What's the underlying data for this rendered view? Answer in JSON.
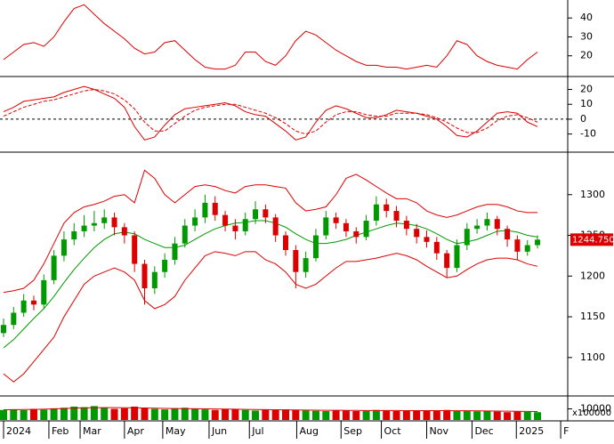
{
  "chart_data": [
    {
      "type": "line",
      "ylim": [
        10,
        49.5
      ],
      "yticks": [
        20,
        30,
        40
      ],
      "series": [
        {
          "color": "#dd0000",
          "values": [
            18,
            22,
            26,
            27,
            25,
            30,
            38,
            45,
            47,
            42,
            37,
            33,
            29,
            24,
            21,
            22,
            27,
            28,
            23,
            18,
            14,
            13,
            13,
            15,
            22,
            22,
            17,
            15,
            20,
            28,
            33,
            31,
            27,
            23,
            20,
            17,
            15,
            15,
            14,
            14,
            13,
            14,
            15,
            14,
            20,
            28,
            26,
            20,
            17,
            15,
            14,
            13,
            18,
            22
          ]
        }
      ]
    },
    {
      "type": "line",
      "ylim": [
        -21,
        27.5
      ],
      "yticks": [
        20,
        10,
        0,
        -10
      ],
      "zero_line": 0,
      "series": [
        {
          "color": "#dd0000",
          "dashed": false,
          "values": [
            5,
            8,
            12,
            13,
            14,
            15,
            18,
            20,
            22,
            20,
            17,
            14,
            8,
            -5,
            -14,
            -12,
            -4,
            3,
            7,
            8,
            9,
            10,
            11,
            9,
            5,
            3,
            2,
            -3,
            -8,
            -14,
            -12,
            -2,
            6,
            9,
            7,
            4,
            1,
            1,
            3,
            6,
            5,
            4,
            2,
            0,
            -5,
            -11,
            -12,
            -8,
            -2,
            4,
            5,
            4,
            -2,
            -5
          ]
        },
        {
          "color": "#dd0000",
          "dashed": true,
          "values": [
            2,
            5,
            8,
            10,
            12,
            13,
            15,
            17,
            19,
            20,
            19,
            17,
            13,
            7,
            -2,
            -8,
            -8,
            -3,
            2,
            6,
            8,
            9,
            10,
            10,
            8,
            6,
            4,
            1,
            -3,
            -8,
            -10,
            -8,
            -2,
            3,
            5,
            5,
            3,
            2,
            2,
            4,
            4,
            4,
            3,
            1,
            -2,
            -6,
            -9,
            -9,
            -6,
            -1,
            2,
            3,
            1,
            -2
          ]
        }
      ]
    },
    {
      "type": "candlestick",
      "ylim": [
        1055,
        1350
      ],
      "yticks": [
        1100,
        1150,
        1200,
        1250,
        1300
      ],
      "up_color": "#009900",
      "down_color": "#dd0000",
      "open": [
        1130,
        1140,
        1155,
        1170,
        1165,
        1195,
        1225,
        1245,
        1255,
        1262,
        1265,
        1272,
        1260,
        1250,
        1215,
        1185,
        1205,
        1220,
        1240,
        1262,
        1272,
        1290,
        1275,
        1262,
        1255,
        1270,
        1282,
        1272,
        1250,
        1232,
        1205,
        1222,
        1250,
        1272,
        1265,
        1255,
        1248,
        1268,
        1288,
        1280,
        1268,
        1258,
        1248,
        1242,
        1228,
        1210,
        1238,
        1258,
        1262,
        1270,
        1258,
        1245,
        1230,
        1238
      ],
      "high": [
        1148,
        1162,
        1178,
        1176,
        1202,
        1232,
        1255,
        1265,
        1275,
        1280,
        1282,
        1278,
        1265,
        1255,
        1220,
        1212,
        1228,
        1248,
        1270,
        1282,
        1300,
        1298,
        1280,
        1270,
        1278,
        1292,
        1288,
        1276,
        1255,
        1238,
        1230,
        1258,
        1280,
        1278,
        1270,
        1260,
        1275,
        1298,
        1295,
        1286,
        1274,
        1264,
        1256,
        1248,
        1232,
        1245,
        1265,
        1270,
        1278,
        1274,
        1262,
        1250,
        1244,
        1250
      ],
      "low": [
        1125,
        1135,
        1150,
        1158,
        1160,
        1190,
        1218,
        1238,
        1248,
        1255,
        1258,
        1250,
        1240,
        1205,
        1165,
        1178,
        1198,
        1214,
        1235,
        1255,
        1265,
        1268,
        1255,
        1245,
        1250,
        1264,
        1265,
        1242,
        1225,
        1185,
        1198,
        1218,
        1245,
        1258,
        1248,
        1240,
        1244,
        1262,
        1272,
        1260,
        1250,
        1240,
        1235,
        1220,
        1198,
        1205,
        1232,
        1252,
        1256,
        1250,
        1236,
        1220,
        1225,
        1234
      ],
      "close": [
        1140,
        1155,
        1170,
        1165,
        1195,
        1225,
        1245,
        1255,
        1262,
        1265,
        1272,
        1260,
        1250,
        1215,
        1185,
        1205,
        1220,
        1240,
        1262,
        1272,
        1290,
        1275,
        1262,
        1255,
        1270,
        1282,
        1272,
        1250,
        1232,
        1205,
        1222,
        1250,
        1272,
        1265,
        1255,
        1248,
        1268,
        1288,
        1280,
        1268,
        1258,
        1248,
        1242,
        1228,
        1210,
        1238,
        1258,
        1262,
        1270,
        1258,
        1245,
        1230,
        1238,
        1244.75
      ],
      "last_price": {
        "value": 1244.75,
        "label": "1244.750"
      },
      "series": [
        {
          "color": "#009900",
          "values": [
            1112,
            1122,
            1135,
            1148,
            1160,
            1175,
            1192,
            1208,
            1222,
            1235,
            1245,
            1252,
            1254,
            1252,
            1245,
            1240,
            1235,
            1235,
            1238,
            1245,
            1252,
            1258,
            1262,
            1265,
            1266,
            1268,
            1268,
            1265,
            1260,
            1252,
            1245,
            1240,
            1240,
            1242,
            1245,
            1250,
            1254,
            1258,
            1262,
            1265,
            1264,
            1262,
            1258,
            1252,
            1245,
            1240,
            1242,
            1245,
            1250,
            1255,
            1256,
            1254,
            1250,
            1248
          ]
        },
        {
          "color": "#dd0000",
          "values": [
            1180,
            1182,
            1185,
            1195,
            1215,
            1240,
            1265,
            1278,
            1285,
            1288,
            1292,
            1298,
            1300,
            1290,
            1330,
            1320,
            1300,
            1290,
            1300,
            1310,
            1312,
            1310,
            1305,
            1302,
            1310,
            1312,
            1312,
            1310,
            1308,
            1290,
            1280,
            1282,
            1285,
            1300,
            1320,
            1325,
            1318,
            1310,
            1302,
            1295,
            1295,
            1290,
            1280,
            1275,
            1272,
            1275,
            1280,
            1285,
            1288,
            1288,
            1285,
            1280,
            1278,
            1278
          ]
        },
        {
          "color": "#dd0000",
          "values": [
            1080,
            1070,
            1080,
            1095,
            1110,
            1125,
            1150,
            1170,
            1190,
            1200,
            1205,
            1210,
            1205,
            1195,
            1170,
            1160,
            1165,
            1175,
            1195,
            1210,
            1225,
            1230,
            1228,
            1225,
            1230,
            1230,
            1220,
            1215,
            1205,
            1190,
            1185,
            1190,
            1200,
            1210,
            1218,
            1218,
            1220,
            1222,
            1225,
            1228,
            1225,
            1220,
            1212,
            1205,
            1198,
            1200,
            1208,
            1215,
            1220,
            1222,
            1222,
            1220,
            1215,
            1212
          ]
        }
      ]
    },
    {
      "type": "bar",
      "ylim": [
        0,
        20000
      ],
      "yticks": [
        10000
      ],
      "unit_label": "x100000",
      "xlim": [
        0,
        56
      ],
      "xticks": [
        {
          "value": 0,
          "label": "2024"
        },
        {
          "value": 4.5,
          "label": "Feb"
        },
        {
          "value": 7.6,
          "label": "Mar"
        },
        {
          "value": 12,
          "label": "Apr"
        },
        {
          "value": 15.8,
          "label": "May"
        },
        {
          "value": 20.4,
          "label": "Jun"
        },
        {
          "value": 24.4,
          "label": "Jul"
        },
        {
          "value": 29.1,
          "label": "Aug"
        },
        {
          "value": 33.5,
          "label": "Sep"
        },
        {
          "value": 37.5,
          "label": "Oct"
        },
        {
          "value": 42,
          "label": "Nov"
        },
        {
          "value": 46.5,
          "label": "Dec"
        },
        {
          "value": 50.9,
          "label": "2025"
        },
        {
          "value": 55.3,
          "label": "F"
        }
      ],
      "values": [
        9000,
        9500,
        8800,
        10000,
        9200,
        10500,
        11000,
        12000,
        11500,
        12500,
        11000,
        10000,
        10500,
        12000,
        11000,
        10000,
        9500,
        10500,
        11000,
        10000,
        9500,
        9000,
        10000,
        9800,
        9000,
        8500,
        9200,
        8800,
        9500,
        9000,
        8500,
        8200,
        8000,
        8800,
        8500,
        8000,
        8200,
        9000,
        8500,
        8000,
        8200,
        8500,
        8000,
        8800,
        9000,
        8200,
        8000,
        7800,
        8200,
        7500,
        7000,
        7500,
        7200,
        7000
      ],
      "series": [
        {
          "color": "#dd0000",
          "values": [
            9200,
            9300,
            9400,
            9500,
            9700,
            10000,
            10300,
            10600,
            10900,
            11000,
            11100,
            11100,
            11000,
            10900,
            10800,
            10600,
            10400,
            10300,
            10200,
            10100,
            10000,
            9900,
            9800,
            9700,
            9500,
            9400,
            9300,
            9200,
            9100,
            9000,
            8900,
            8800,
            8700,
            8700,
            8600,
            8600,
            8500,
            8500,
            8500,
            8500,
            8400,
            8400,
            8400,
            8400,
            8400,
            8300,
            8300,
            8200,
            8100,
            8000,
            7900,
            7800,
            7700,
            7600
          ]
        }
      ]
    }
  ]
}
